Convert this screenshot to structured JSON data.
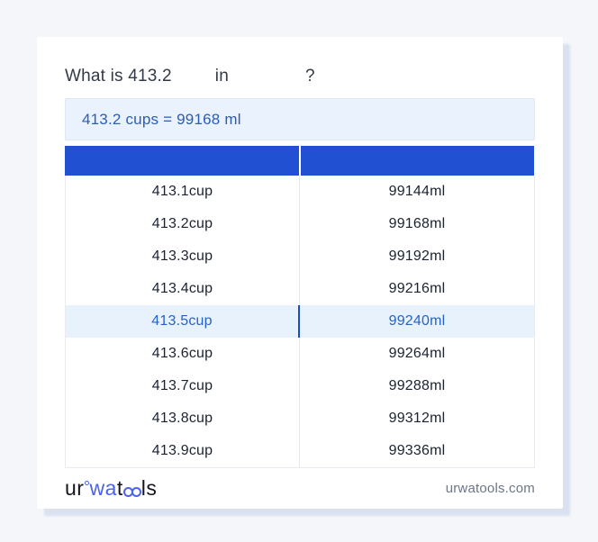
{
  "title": {
    "part1": "What is 413.2",
    "part2": "in",
    "part3": "?"
  },
  "result": {
    "text": "413.2 cups = 99168 ml",
    "background_color": "#eaf2fd",
    "text_color": "#2a5cb8"
  },
  "table": {
    "header": {
      "left_label": "",
      "right_label": "",
      "background_color": "#2150d2"
    },
    "rows": [
      {
        "cup": "413.1cup",
        "ml": "99144ml"
      },
      {
        "cup": "413.2cup",
        "ml": "99168ml"
      },
      {
        "cup": "413.3cup",
        "ml": "99192ml"
      },
      {
        "cup": "413.4cup",
        "ml": "99216ml"
      },
      {
        "cup": "413.5cup",
        "ml": "99240ml"
      },
      {
        "cup": "413.6cup",
        "ml": "99264ml"
      },
      {
        "cup": "413.7cup",
        "ml": "99288ml"
      },
      {
        "cup": "413.8cup",
        "ml": "99312ml"
      },
      {
        "cup": "413.9cup",
        "ml": "99336ml"
      }
    ],
    "highlighted_row_index": 4,
    "highlight_background_color": "#e8f2fd",
    "highlight_text_color": "#2563c8"
  },
  "footer": {
    "logo": {
      "part1": "ur",
      "part2": "wa",
      "part3": "t",
      "part4": "ls",
      "accent_color": "#4a63ea"
    },
    "domain": "urwatools.com"
  }
}
